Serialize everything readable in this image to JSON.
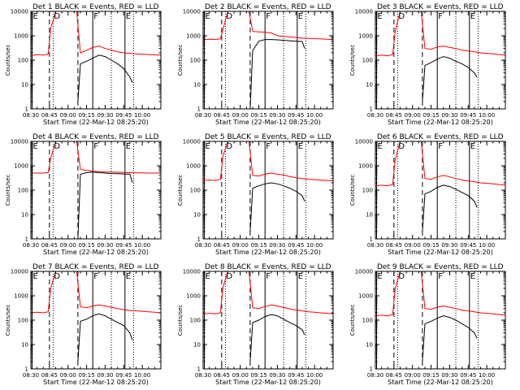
{
  "chart_data": {
    "type": "line",
    "layout": "3x3 grid",
    "shared": {
      "ylabel": "Counts/sec",
      "yscale": "log",
      "ylim": [
        1,
        10000
      ],
      "ytick_labels": [
        "1",
        "10",
        "100",
        "1000",
        "10000"
      ],
      "xlim_minutes": [
        0,
        105
      ],
      "xtick_labels": [
        "08:30",
        "08:45",
        "09:00",
        "09:15",
        "09:30",
        "09:45",
        "10:00"
      ],
      "xlabel": "Start Time (22-Mar-12 08:25:20)",
      "legend_text": "BLACK = Events, RED = LLD",
      "series_colors": {
        "events": "#000000",
        "lld": "#ff0000"
      },
      "markers": [
        {
          "label": "E",
          "minute": 1,
          "style": "solid"
        },
        {
          "label": "D",
          "minute": 18,
          "style": "dotted"
        },
        {
          "label": "F",
          "minute": 50,
          "style": "solid"
        },
        {
          "label": "E",
          "minute": 76,
          "style": "solid"
        }
      ],
      "dashed_lines_minutes": [
        15,
        38
      ],
      "dotted_lines_minutes": [
        18,
        65,
        83
      ]
    },
    "panels": [
      {
        "title": "Det 1",
        "lld": {
          "x": [
            0,
            5,
            10,
            14,
            16,
            20,
            25,
            30,
            35,
            37,
            40,
            45,
            50,
            55,
            60,
            65,
            70,
            75,
            80,
            85,
            90,
            95,
            100,
            105
          ],
          "y": [
            150,
            170,
            160,
            180,
            2000,
            10000,
            10000,
            10000,
            10000,
            10000,
            200,
            250,
            330,
            380,
            300,
            260,
            220,
            200,
            190,
            180,
            175,
            170,
            165,
            160
          ]
        },
        "events": {
          "x": [
            38,
            40,
            45,
            50,
            55,
            60,
            65,
            70,
            75,
            80,
            82
          ],
          "y": [
            2,
            70,
            90,
            120,
            160,
            140,
            100,
            70,
            45,
            20,
            12
          ]
        }
      },
      {
        "title": "Det 2",
        "lld": {
          "x": [
            0,
            5,
            10,
            14,
            16,
            20,
            25,
            30,
            35,
            37,
            40,
            45,
            50,
            55,
            60,
            65,
            70,
            75,
            80,
            85,
            90,
            95,
            100,
            105
          ],
          "y": [
            700,
            720,
            700,
            750,
            1800,
            10000,
            10000,
            10000,
            10000,
            10000,
            1500,
            1450,
            1400,
            1300,
            1000,
            950,
            900,
            850,
            800,
            780,
            760,
            740,
            720,
            700
          ]
        },
        "events": {
          "x": [
            38,
            40,
            45,
            50,
            55,
            60,
            65,
            70,
            75,
            80,
            82
          ],
          "y": [
            1,
            250,
            600,
            700,
            700,
            680,
            650,
            620,
            600,
            580,
            300
          ]
        }
      },
      {
        "title": "Det 3",
        "lld": {
          "x": [
            0,
            5,
            10,
            14,
            16,
            20,
            25,
            30,
            35,
            37,
            40,
            45,
            50,
            55,
            60,
            65,
            70,
            75,
            80,
            85,
            90,
            95,
            100,
            105
          ],
          "y": [
            150,
            160,
            150,
            170,
            1500,
            10000,
            10000,
            10000,
            10000,
            10000,
            300,
            280,
            350,
            380,
            330,
            300,
            260,
            240,
            220,
            200,
            190,
            180,
            170,
            160
          ]
        },
        "events": {
          "x": [
            38,
            40,
            45,
            50,
            55,
            60,
            65,
            70,
            75,
            80,
            82
          ],
          "y": [
            2,
            60,
            80,
            110,
            140,
            120,
            90,
            70,
            50,
            30,
            20
          ]
        }
      },
      {
        "title": "Det 4",
        "lld": {
          "x": [
            0,
            5,
            10,
            14,
            16,
            20,
            25,
            30,
            35,
            37,
            40,
            45,
            50,
            55,
            60,
            65,
            70,
            75,
            80,
            85,
            90,
            95,
            100,
            105
          ],
          "y": [
            500,
            500,
            500,
            520,
            2000,
            10000,
            10000,
            10000,
            10000,
            10000,
            700,
            650,
            600,
            580,
            560,
            550,
            540,
            530,
            520,
            510,
            510,
            500,
            500,
            500
          ]
        },
        "events": {
          "x": [
            38,
            40,
            45,
            50,
            55,
            60,
            65,
            70,
            75,
            80,
            82
          ],
          "y": [
            1,
            450,
            520,
            550,
            520,
            500,
            480,
            470,
            460,
            450,
            200
          ]
        }
      },
      {
        "title": "Det 5",
        "lld": {
          "x": [
            0,
            5,
            10,
            14,
            16,
            20,
            25,
            30,
            35,
            37,
            40,
            45,
            50,
            55,
            60,
            65,
            70,
            75,
            80,
            85,
            90,
            95,
            100,
            105
          ],
          "y": [
            250,
            260,
            250,
            280,
            2500,
            10000,
            10000,
            10000,
            10000,
            10000,
            400,
            380,
            450,
            500,
            450,
            420,
            360,
            320,
            300,
            280,
            270,
            260,
            250,
            240
          ]
        },
        "events": {
          "x": [
            38,
            40,
            45,
            50,
            55,
            60,
            65,
            70,
            75,
            80,
            82
          ],
          "y": [
            2,
            120,
            150,
            180,
            200,
            180,
            150,
            120,
            90,
            60,
            35
          ]
        }
      },
      {
        "title": "Det 6",
        "lld": {
          "x": [
            0,
            5,
            10,
            14,
            16,
            20,
            25,
            30,
            35,
            37,
            40,
            45,
            50,
            55,
            60,
            65,
            70,
            75,
            80,
            85,
            90,
            95,
            100,
            105
          ],
          "y": [
            150,
            160,
            150,
            170,
            1800,
            10000,
            10000,
            10000,
            10000,
            10000,
            300,
            280,
            350,
            400,
            350,
            300,
            260,
            240,
            220,
            200,
            190,
            180,
            170,
            160
          ]
        },
        "events": {
          "x": [
            38,
            40,
            45,
            50,
            55,
            60,
            65,
            70,
            75,
            80,
            82
          ],
          "y": [
            2,
            70,
            90,
            130,
            160,
            140,
            110,
            80,
            60,
            35,
            20
          ]
        }
      },
      {
        "title": "Det 7",
        "lld": {
          "x": [
            0,
            5,
            10,
            14,
            16,
            20,
            25,
            30,
            35,
            37,
            40,
            45,
            50,
            55,
            60,
            65,
            70,
            75,
            80,
            85,
            90,
            95,
            100,
            105
          ],
          "y": [
            200,
            210,
            200,
            220,
            2000,
            10000,
            10000,
            10000,
            10000,
            10000,
            350,
            320,
            380,
            420,
            380,
            340,
            300,
            270,
            250,
            240,
            230,
            220,
            210,
            200
          ]
        },
        "events": {
          "x": [
            38,
            40,
            45,
            50,
            55,
            60,
            65,
            70,
            75,
            80,
            82
          ],
          "y": [
            2,
            90,
            110,
            150,
            180,
            150,
            110,
            80,
            60,
            30,
            15
          ]
        }
      },
      {
        "title": "Det 8",
        "lld": {
          "x": [
            0,
            5,
            10,
            14,
            16,
            20,
            25,
            30,
            35,
            37,
            40,
            45,
            50,
            55,
            60,
            65,
            70,
            75,
            80,
            85,
            90,
            95,
            100,
            105
          ],
          "y": [
            180,
            190,
            180,
            200,
            2200,
            10000,
            10000,
            10000,
            10000,
            10000,
            320,
            300,
            360,
            420,
            380,
            330,
            290,
            260,
            240,
            220,
            210,
            200,
            190,
            180
          ]
        },
        "events": {
          "x": [
            38,
            40,
            45,
            50,
            55,
            60,
            65,
            70,
            75,
            80,
            82
          ],
          "y": [
            2,
            80,
            100,
            140,
            170,
            150,
            110,
            80,
            60,
            40,
            25
          ]
        }
      },
      {
        "title": "Det 9",
        "lld": {
          "x": [
            0,
            5,
            10,
            14,
            16,
            20,
            25,
            30,
            35,
            37,
            40,
            45,
            50,
            55,
            60,
            65,
            70,
            75,
            80,
            85,
            90,
            95,
            100,
            105
          ],
          "y": [
            150,
            160,
            150,
            170,
            2000,
            10000,
            10000,
            10000,
            10000,
            10000,
            300,
            280,
            340,
            380,
            340,
            300,
            260,
            240,
            220,
            200,
            190,
            180,
            170,
            160
          ]
        },
        "events": {
          "x": [
            38,
            40,
            45,
            50,
            55,
            60,
            65,
            70,
            75,
            80,
            82
          ],
          "y": [
            2,
            70,
            90,
            120,
            150,
            130,
            100,
            70,
            50,
            30,
            18
          ]
        }
      }
    ]
  }
}
